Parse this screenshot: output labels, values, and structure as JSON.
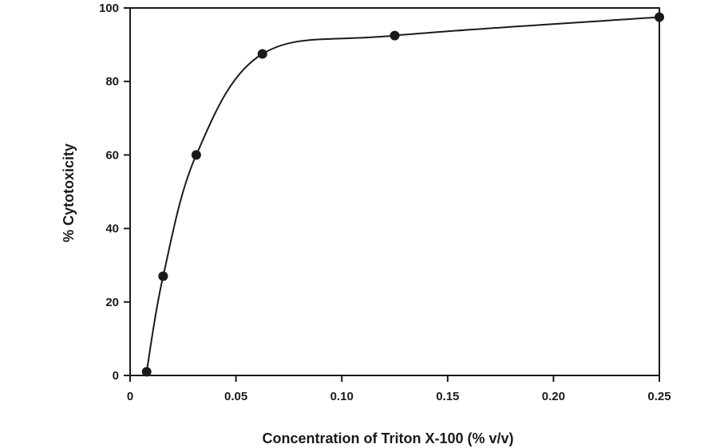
{
  "chart_data": {
    "type": "line",
    "title": "",
    "xlabel": "Concentration of Triton X-100 (% v/v)",
    "ylabel": "% Cytotoxicity",
    "xlim": [
      0,
      0.25
    ],
    "ylim": [
      0,
      100
    ],
    "xticks": [
      0,
      0.05,
      0.1,
      0.15,
      0.2,
      0.25
    ],
    "xtick_labels": [
      "0",
      "0.05",
      "0.10",
      "0.15",
      "0.20",
      "0.25"
    ],
    "yticks": [
      0,
      20,
      40,
      60,
      80,
      100
    ],
    "ytick_labels": [
      "0",
      "20",
      "40",
      "60",
      "80",
      "100"
    ],
    "grid": false,
    "legend": "none",
    "series": [
      {
        "x": [
          0.0078,
          0.0156,
          0.03125,
          0.0625,
          0.125,
          0.25
        ],
        "y": [
          1,
          27,
          60,
          87.5,
          92.5,
          97.5
        ],
        "marker": "circle",
        "color": "#1a1a1a"
      }
    ]
  }
}
